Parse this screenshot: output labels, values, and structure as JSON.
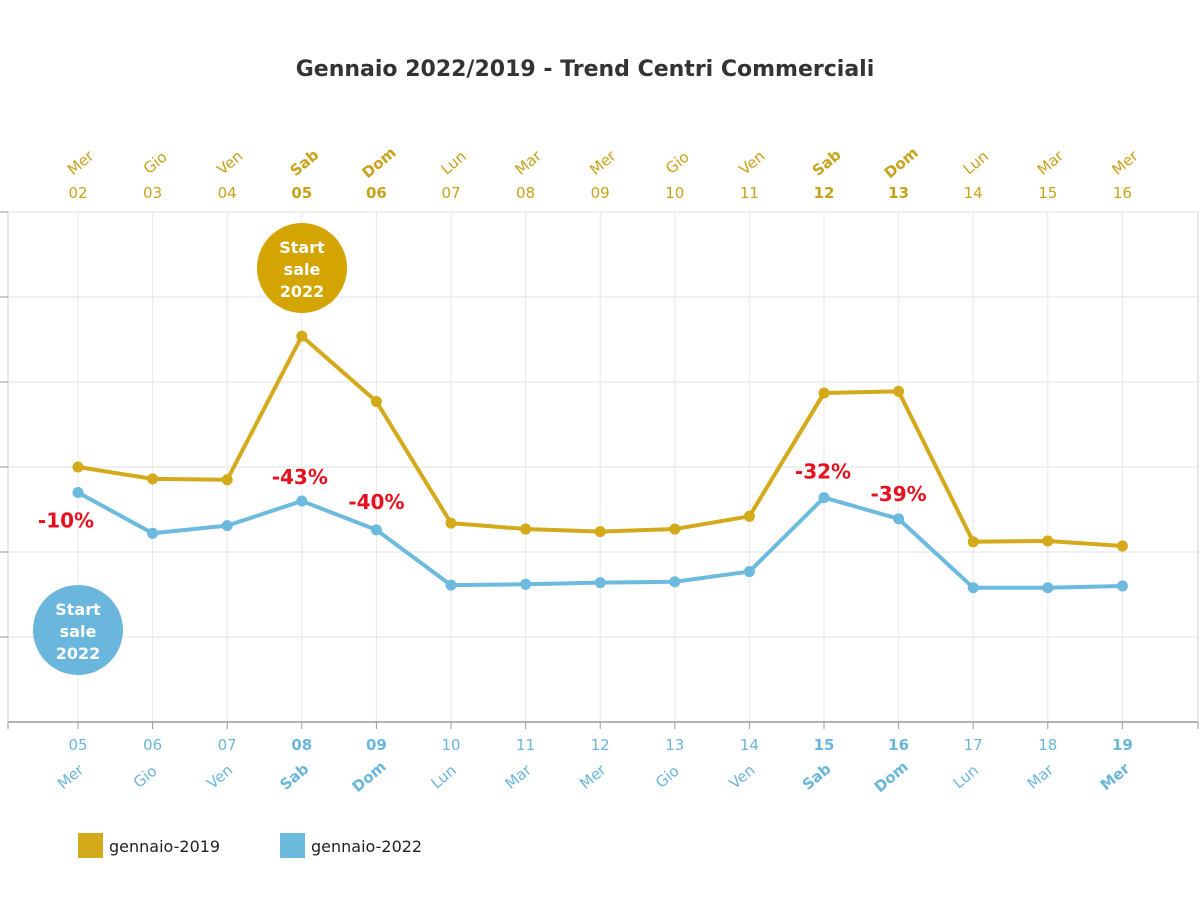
{
  "chart_data": {
    "type": "line",
    "title": "Gennaio 2022/2019 - Trend Centri Commerciali",
    "xlabel": "",
    "ylabel": "",
    "ylim": [
      0,
      600
    ],
    "grid": true,
    "top_axis": {
      "days": [
        "02",
        "03",
        "04",
        "05",
        "06",
        "07",
        "08",
        "09",
        "10",
        "11",
        "12",
        "13",
        "14",
        "15",
        "16"
      ],
      "weekdays": [
        "Mer",
        "Gio",
        "Ven",
        "Sab",
        "Dom",
        "Lun",
        "Mar",
        "Mer",
        "Gio",
        "Ven",
        "Sab",
        "Dom",
        "Lun",
        "Mar",
        "Mer"
      ],
      "bold": [
        false,
        false,
        false,
        true,
        true,
        false,
        false,
        false,
        false,
        false,
        true,
        true,
        false,
        false,
        false
      ]
    },
    "bottom_axis": {
      "days": [
        "05",
        "06",
        "07",
        "08",
        "09",
        "10",
        "11",
        "12",
        "13",
        "14",
        "15",
        "16",
        "17",
        "18",
        "19"
      ],
      "weekdays": [
        "Mer",
        "Gio",
        "Ven",
        "Sab",
        "Dom",
        "Lun",
        "Mar",
        "Mer",
        "Gio",
        "Ven",
        "Sab",
        "Dom",
        "Lun",
        "Mar",
        "Mer"
      ],
      "bold": [
        false,
        false,
        false,
        true,
        true,
        false,
        false,
        false,
        false,
        false,
        true,
        true,
        false,
        false,
        true
      ]
    },
    "series": [
      {
        "name": "gennaio-2019",
        "color": "#d4a91a",
        "values": [
          300,
          286,
          285,
          454,
          377,
          234,
          227,
          224,
          227,
          242,
          387,
          389,
          212,
          213,
          207
        ]
      },
      {
        "name": "gennaio-2022",
        "color": "#6dbadf",
        "values": [
          270,
          222,
          231,
          260,
          226,
          161,
          162,
          164,
          165,
          177,
          264,
          239,
          158,
          158,
          160
        ]
      }
    ],
    "annotations": [
      {
        "index": 0,
        "label": "-10%"
      },
      {
        "index": 3,
        "label": "-43%"
      },
      {
        "index": 4,
        "label": "-40%"
      },
      {
        "index": 10,
        "label": "-32%"
      },
      {
        "index": 11,
        "label": "-39%"
      }
    ],
    "badges": [
      {
        "series": "gennaio-2019",
        "lines": [
          "Start",
          "sale",
          "2022"
        ],
        "color": "#d4a400"
      },
      {
        "series": "gennaio-2022",
        "lines": [
          "Start",
          "sale",
          "2022"
        ],
        "color": "#6ab6dc"
      }
    ],
    "legend": {
      "position": "bottom-left",
      "items": [
        "gennaio-2019",
        "gennaio-2022"
      ]
    }
  }
}
